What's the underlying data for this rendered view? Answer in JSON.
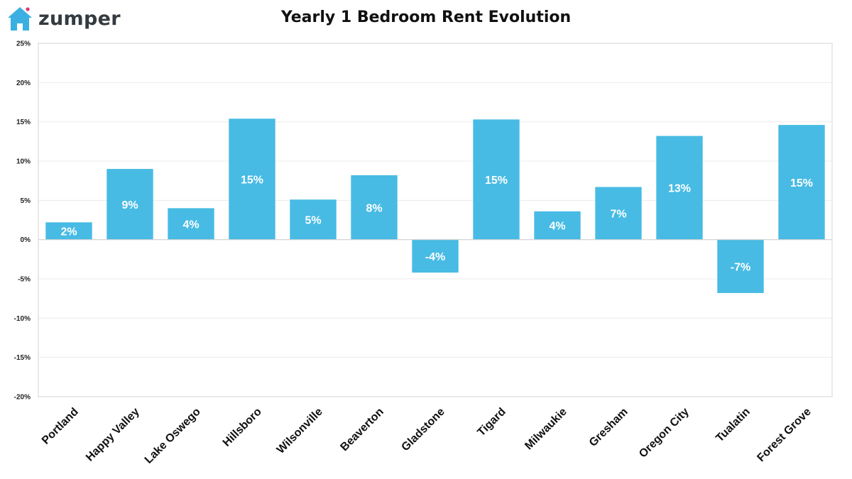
{
  "logo": {
    "text": "zumper",
    "icon": "house-icon",
    "brand_color": "#3ab0e2",
    "accent_color": "#e5356f"
  },
  "chart_data": {
    "type": "bar",
    "title": "Yearly 1 Bedroom Rent Evolution",
    "categories": [
      "Portland",
      "Happy Valley",
      "Lake Oswego",
      "Hillsboro",
      "Wilsonville",
      "Beaverton",
      "Gladstone",
      "Tigard",
      "Milwaukie",
      "Gresham",
      "Oregon City",
      "Tualatin",
      "Forest Grove"
    ],
    "values": [
      2.2,
      9.0,
      4.0,
      15.4,
      5.1,
      8.2,
      -4.2,
      15.3,
      3.6,
      6.7,
      13.2,
      -6.8,
      14.6
    ],
    "data_labels": [
      "2%",
      "9%",
      "4%",
      "15%",
      "5%",
      "8%",
      "-4%",
      "15%",
      "4%",
      "7%",
      "13%",
      "-7%",
      "15%"
    ],
    "ylim": [
      -20,
      25
    ],
    "yticks": [
      25,
      20,
      15,
      10,
      5,
      0,
      -5,
      -10,
      -15,
      -20
    ],
    "ytick_labels": [
      "25%",
      "20%",
      "15%",
      "10%",
      "5%",
      "0%",
      "-5%",
      "-10%",
      "-15%",
      "-20%"
    ],
    "xlabel": "",
    "ylabel": "",
    "grid": true,
    "legend": "none",
    "bar_color": "#47bbe4"
  }
}
